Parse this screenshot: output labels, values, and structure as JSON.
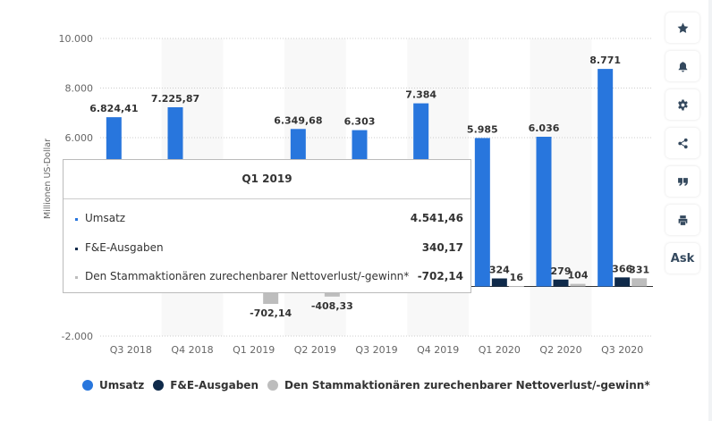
{
  "chart_data": {
    "type": "bar",
    "title": "",
    "xlabel": "",
    "ylabel": "Millionen US-Dollar",
    "ylim": [
      -2000,
      10000
    ],
    "yticks": [
      -2000,
      6000,
      8000,
      10000
    ],
    "ytick_labels": [
      "-2.000",
      "6.000",
      "8.000",
      "10.000"
    ],
    "categories": [
      "Q3 2018",
      "Q4 2018",
      "Q1 2019",
      "Q2 2019",
      "Q3 2019",
      "Q4 2019",
      "Q1 2020",
      "Q2 2020",
      "Q3 2020"
    ],
    "series": [
      {
        "name": "Umsatz",
        "color": "#2876dd",
        "values": [
          6824.41,
          7225.87,
          4541.46,
          6349.68,
          6303,
          7384,
          5985,
          6036,
          8771
        ],
        "labels": [
          "6.824,41",
          "7.225,87",
          "",
          "6.349,68",
          "6.303",
          "7.384",
          "5.985",
          "6.036",
          "8.771"
        ]
      },
      {
        "name": "F&E-Ausgaben",
        "color": "#0f2a4a",
        "values": [
          null,
          null,
          340.17,
          null,
          null,
          null,
          324,
          279,
          366
        ],
        "labels": [
          "",
          "",
          "",
          "",
          "",
          "",
          "324",
          "279",
          "366"
        ]
      },
      {
        "name": "Den Stammaktionären zurechenbarer Nettoverlust/-gewinn*",
        "color": "#bdbdbd",
        "values": [
          null,
          null,
          -702.14,
          -408.33,
          null,
          null,
          16,
          104,
          331
        ],
        "labels": [
          "",
          "",
          "-702,14",
          "-408,33",
          "",
          "",
          "16",
          "104",
          "331"
        ]
      }
    ],
    "legend_position": "bottom",
    "grid": true
  },
  "tooltip": {
    "title": "Q1 2019",
    "rows": [
      {
        "label": "Umsatz",
        "value": "4.541,46",
        "color": "#2876dd"
      },
      {
        "label": "F&E-Ausgaben",
        "value": "340,17",
        "color": "#0f2a4a"
      },
      {
        "label": "Den Stammaktionären zurechenbarer Nettoverlust/-gewinn*",
        "value": "-702,14",
        "color": "#bdbdbd"
      }
    ]
  },
  "sidebar": {
    "buttons": [
      {
        "icon": "star-icon",
        "label": ""
      },
      {
        "icon": "bell-icon",
        "label": ""
      },
      {
        "icon": "gear-icon",
        "label": ""
      },
      {
        "icon": "share-icon",
        "label": ""
      },
      {
        "icon": "quote-icon",
        "label": ""
      },
      {
        "icon": "print-icon",
        "label": ""
      },
      {
        "icon": "ask-icon",
        "label": "Ask"
      }
    ]
  }
}
